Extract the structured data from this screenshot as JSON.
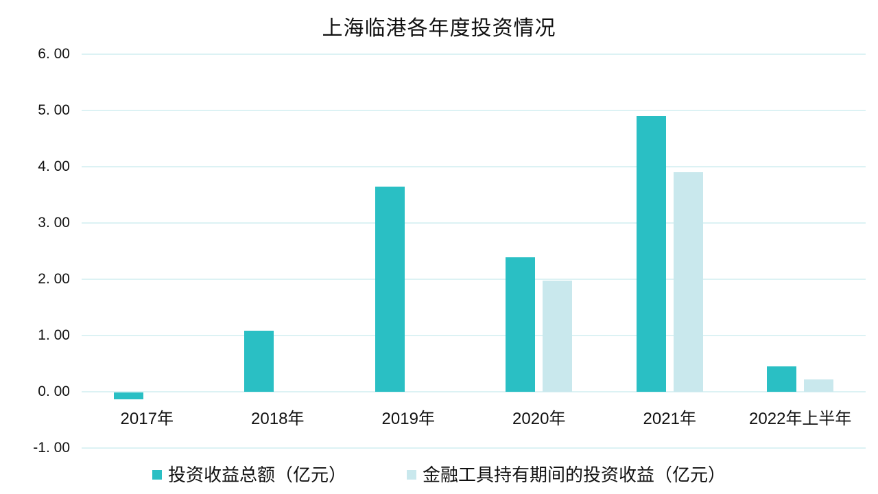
{
  "title": "上海临港各年度投资情况",
  "chart_data": {
    "type": "bar",
    "title": "上海临港各年度投资情况",
    "categories": [
      "2017年",
      "2018年",
      "2019年",
      "2020年",
      "2021年",
      "2022年上半年"
    ],
    "series": [
      {
        "name": "投资收益总额（亿元）",
        "color": "#2ABFC4",
        "values": [
          -0.12,
          1.08,
          3.65,
          2.39,
          4.9,
          0.45
        ]
      },
      {
        "name": "金融工具持有期间的投资收益（亿元）",
        "color": "#C9E8ED",
        "values": [
          null,
          null,
          null,
          1.97,
          3.9,
          0.22
        ]
      }
    ],
    "xlabel": "",
    "ylabel": "",
    "y_axis": {
      "min": -1,
      "max": 6,
      "step": 1,
      "tick_labels": [
        "6. 00",
        "5. 00",
        "4. 00",
        "3. 00",
        "2. 00",
        "1. 00",
        "0. 00",
        "-1. 00"
      ]
    },
    "grid": true,
    "gridline_color": "#DCF2F4",
    "background": "#FFFFFF",
    "text_color": "#111111",
    "legend_position": "bottom"
  }
}
